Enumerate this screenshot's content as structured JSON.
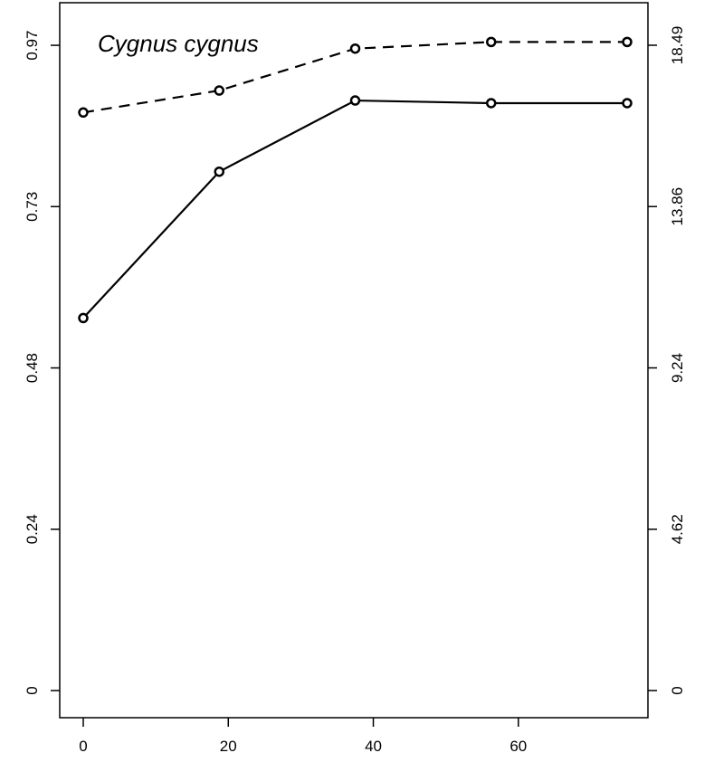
{
  "chart_data": {
    "type": "line",
    "title": "Cygnus cygnus",
    "x": [
      0,
      18.75,
      37.5,
      56.25,
      75
    ],
    "xlim": [
      -3,
      75
    ],
    "x_ticks": [
      "0",
      "20",
      "40",
      "60"
    ],
    "x_tick_values": [
      0,
      20,
      40,
      60
    ],
    "ylim_left": [
      0,
      1.0
    ],
    "y_ticks_left": [
      "0",
      "0.24",
      "0.48",
      "0.73",
      "0.97"
    ],
    "y_tick_values_left": [
      0,
      0.2425,
      0.485,
      0.7275,
      0.97
    ],
    "ylim_right": [
      0,
      19.06
    ],
    "y_ticks_right": [
      "0",
      "4.62",
      "9.24",
      "13.86",
      "18.49"
    ],
    "y_tick_values_right": [
      0,
      4.6225,
      9.245,
      13.8675,
      18.49
    ],
    "series": [
      {
        "axis": "left",
        "line_style": "solid",
        "marker": "open-circle",
        "values": [
          0.56,
          0.78,
          0.887,
          0.883,
          0.883
        ]
      },
      {
        "axis": "left",
        "line_style": "dashed",
        "marker": "open-circle",
        "values": [
          0.869,
          0.902,
          0.965,
          0.975,
          0.975
        ]
      }
    ],
    "grid": false,
    "legend": "none"
  }
}
